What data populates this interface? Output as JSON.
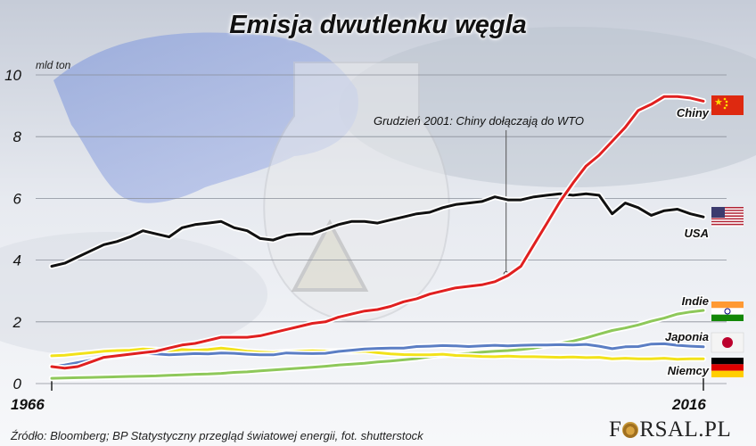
{
  "title": "Emisja dwutlenku węgla",
  "unit_label": "mld ton",
  "source": "Źródło:  Bloomberg;  BP Statystyczny przegląd światowej energii, fot. shutterstock",
  "logo": "FORSAL.PL",
  "annotation": "Grudzień 2001: Chiny dołączają do WTO",
  "colors": {
    "Chiny": "#e02020",
    "USA": "#111111",
    "Indie": "#8ec85a",
    "Japonia": "#5b7ec4",
    "Niemcy": "#f2e21a"
  },
  "chart_data": {
    "type": "line",
    "title": "Emisja dwutlenku węgla",
    "ylabel": "mld ton",
    "xlabel": "",
    "x_tick_labels": [
      "1966",
      "2016"
    ],
    "y_ticks": [
      0,
      2,
      4,
      6,
      8,
      10
    ],
    "ylim": [
      0,
      10
    ],
    "xlim": [
      1966,
      2016
    ],
    "grid": true,
    "annotation": {
      "text": "Grudzień 2001: Chiny dołączają do WTO",
      "x": 2001,
      "y": 3.55
    },
    "years": [
      1966,
      1967,
      1968,
      1969,
      1970,
      1971,
      1972,
      1973,
      1974,
      1975,
      1976,
      1977,
      1978,
      1979,
      1980,
      1981,
      1982,
      1983,
      1984,
      1985,
      1986,
      1987,
      1988,
      1989,
      1990,
      1991,
      1992,
      1993,
      1994,
      1995,
      1996,
      1997,
      1998,
      1999,
      2000,
      2001,
      2002,
      2003,
      2004,
      2005,
      2006,
      2007,
      2008,
      2009,
      2010,
      2011,
      2012,
      2013,
      2014,
      2015,
      2016
    ],
    "series": [
      {
        "name": "Chiny",
        "flag": "cn",
        "values": [
          0.55,
          0.5,
          0.55,
          0.7,
          0.85,
          0.9,
          0.95,
          1.0,
          1.05,
          1.15,
          1.25,
          1.3,
          1.4,
          1.5,
          1.5,
          1.5,
          1.55,
          1.65,
          1.75,
          1.85,
          1.95,
          2.0,
          2.15,
          2.25,
          2.35,
          2.4,
          2.5,
          2.65,
          2.75,
          2.9,
          3.0,
          3.1,
          3.15,
          3.2,
          3.3,
          3.5,
          3.8,
          4.5,
          5.2,
          5.9,
          6.5,
          7.05,
          7.4,
          7.85,
          8.3,
          8.85,
          9.05,
          9.3,
          9.3,
          9.25,
          9.15
        ]
      },
      {
        "name": "USA",
        "flag": "us",
        "values": [
          3.8,
          3.9,
          4.1,
          4.3,
          4.5,
          4.6,
          4.75,
          4.95,
          4.85,
          4.75,
          5.05,
          5.15,
          5.2,
          5.25,
          5.05,
          4.95,
          4.7,
          4.65,
          4.8,
          4.85,
          4.85,
          5.0,
          5.15,
          5.25,
          5.25,
          5.2,
          5.3,
          5.4,
          5.5,
          5.55,
          5.7,
          5.8,
          5.85,
          5.9,
          6.05,
          5.95,
          5.95,
          6.05,
          6.1,
          6.15,
          6.1,
          6.15,
          6.1,
          5.5,
          5.85,
          5.7,
          5.45,
          5.6,
          5.65,
          5.5,
          5.4
        ]
      },
      {
        "name": "Indie",
        "flag": "in",
        "values": [
          0.17,
          0.18,
          0.19,
          0.2,
          0.21,
          0.22,
          0.23,
          0.24,
          0.25,
          0.27,
          0.28,
          0.3,
          0.31,
          0.33,
          0.36,
          0.38,
          0.41,
          0.44,
          0.47,
          0.5,
          0.53,
          0.56,
          0.6,
          0.63,
          0.66,
          0.7,
          0.73,
          0.77,
          0.81,
          0.87,
          0.91,
          0.95,
          0.98,
          1.02,
          1.05,
          1.07,
          1.1,
          1.15,
          1.22,
          1.3,
          1.38,
          1.48,
          1.6,
          1.72,
          1.8,
          1.9,
          2.02,
          2.12,
          2.25,
          2.32,
          2.37
        ]
      },
      {
        "name": "Japonia",
        "flag": "jp",
        "values": [
          0.55,
          0.6,
          0.68,
          0.76,
          0.84,
          0.88,
          0.93,
          0.98,
          0.96,
          0.93,
          0.95,
          0.97,
          0.96,
          0.99,
          0.98,
          0.95,
          0.93,
          0.93,
          0.99,
          0.98,
          0.97,
          0.98,
          1.04,
          1.08,
          1.12,
          1.14,
          1.15,
          1.15,
          1.2,
          1.21,
          1.23,
          1.22,
          1.2,
          1.22,
          1.24,
          1.22,
          1.24,
          1.25,
          1.25,
          1.26,
          1.25,
          1.27,
          1.21,
          1.13,
          1.19,
          1.2,
          1.28,
          1.29,
          1.24,
          1.21,
          1.19
        ]
      },
      {
        "name": "Niemcy",
        "flag": "de",
        "values": [
          0.9,
          0.92,
          0.96,
          1.0,
          1.05,
          1.07,
          1.08,
          1.12,
          1.1,
          1.05,
          1.1,
          1.08,
          1.1,
          1.15,
          1.1,
          1.05,
          1.02,
          1.0,
          1.03,
          1.05,
          1.06,
          1.05,
          1.05,
          1.03,
          1.05,
          1.0,
          0.96,
          0.94,
          0.93,
          0.93,
          0.95,
          0.91,
          0.9,
          0.88,
          0.87,
          0.89,
          0.87,
          0.87,
          0.86,
          0.85,
          0.86,
          0.84,
          0.85,
          0.8,
          0.82,
          0.8,
          0.8,
          0.82,
          0.79,
          0.8,
          0.8
        ]
      }
    ]
  }
}
